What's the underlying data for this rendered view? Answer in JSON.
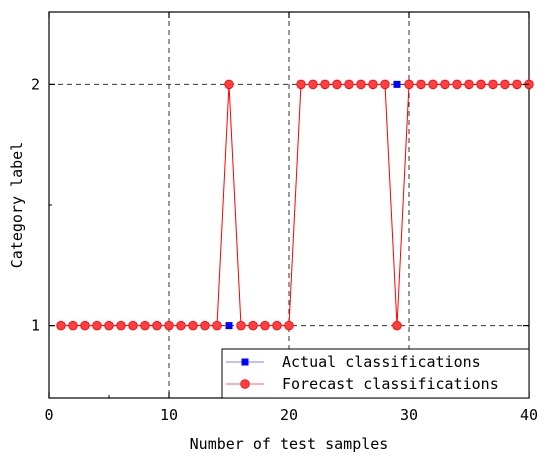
{
  "chart_data": {
    "type": "line",
    "xlabel": "Number of test samples",
    "ylabel": "Category label",
    "xlim": [
      0,
      40
    ],
    "ylim": [
      0.7,
      2.3
    ],
    "xticks": [
      0,
      10,
      20,
      30,
      40
    ],
    "yticks": [
      1,
      2
    ],
    "grid": true,
    "legend_position": "bottom-right",
    "series": [
      {
        "name": "Actual classifications",
        "marker": "square",
        "color": "#0000ff",
        "x": [
          1,
          2,
          3,
          4,
          5,
          6,
          7,
          8,
          9,
          10,
          11,
          12,
          13,
          14,
          15,
          16,
          17,
          18,
          19,
          20,
          21,
          22,
          23,
          24,
          25,
          26,
          27,
          28,
          29,
          30,
          31,
          32,
          33,
          34,
          35,
          36,
          37,
          38,
          39,
          40
        ],
        "values": [
          1,
          1,
          1,
          1,
          1,
          1,
          1,
          1,
          1,
          1,
          1,
          1,
          1,
          1,
          1,
          1,
          1,
          1,
          1,
          1,
          2,
          2,
          2,
          2,
          2,
          2,
          2,
          2,
          2,
          2,
          2,
          2,
          2,
          2,
          2,
          2,
          2,
          2,
          2,
          2
        ]
      },
      {
        "name": "Forecast classifications",
        "marker": "circle",
        "color": "#ff0000",
        "x": [
          1,
          2,
          3,
          4,
          5,
          6,
          7,
          8,
          9,
          10,
          11,
          12,
          13,
          14,
          15,
          16,
          17,
          18,
          19,
          20,
          21,
          22,
          23,
          24,
          25,
          26,
          27,
          28,
          29,
          30,
          31,
          32,
          33,
          34,
          35,
          36,
          37,
          38,
          39,
          40
        ],
        "values": [
          1,
          1,
          1,
          1,
          1,
          1,
          1,
          1,
          1,
          1,
          1,
          1,
          1,
          1,
          2,
          1,
          1,
          1,
          1,
          1,
          2,
          2,
          2,
          2,
          2,
          2,
          2,
          2,
          1,
          2,
          2,
          2,
          2,
          2,
          2,
          2,
          2,
          2,
          2,
          2
        ]
      }
    ]
  }
}
